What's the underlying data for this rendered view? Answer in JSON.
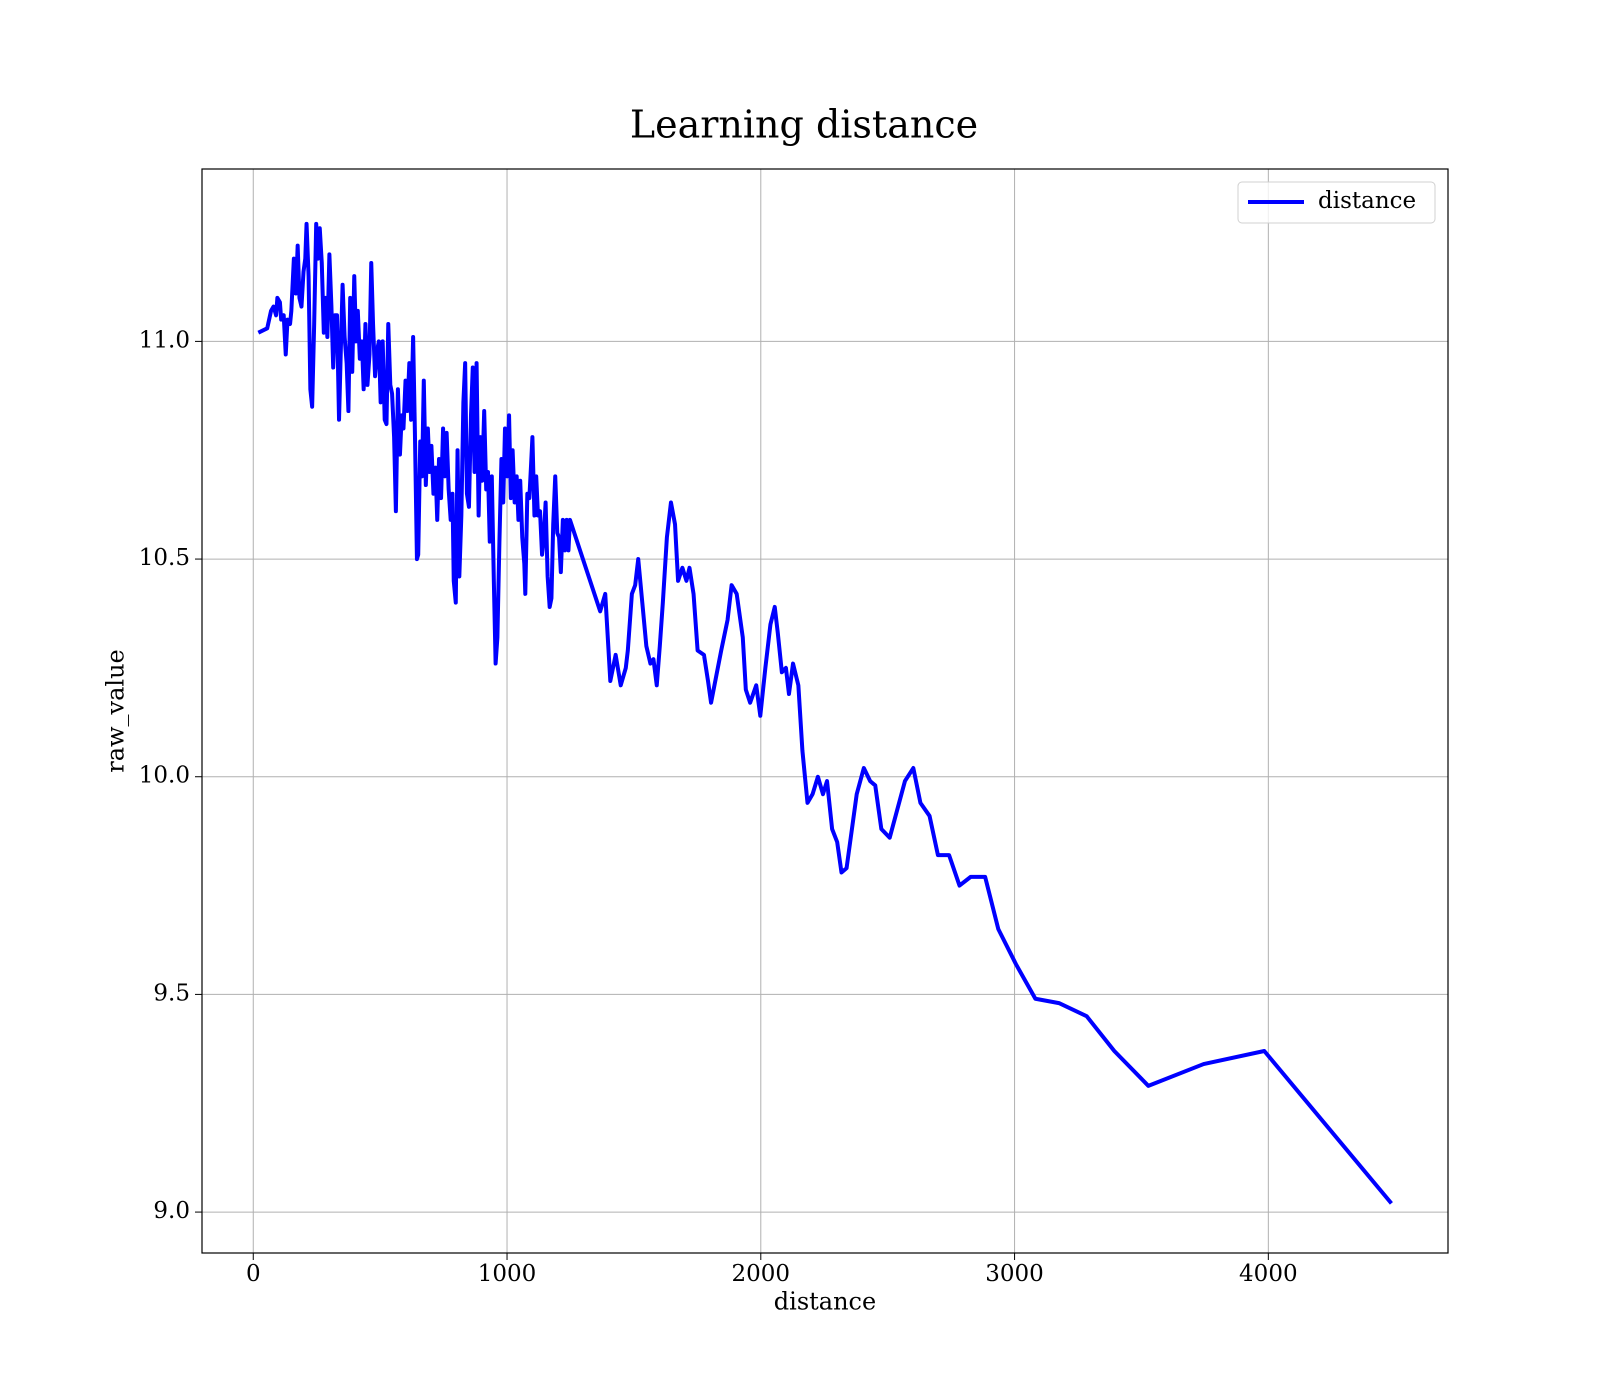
{
  "chart_data": {
    "type": "line",
    "title": "Learning distance",
    "xlabel": "distance",
    "ylabel": "raw_value",
    "x": [
      20,
      55,
      70,
      80,
      90,
      95,
      105,
      110,
      120,
      128,
      135,
      145,
      150,
      160,
      168,
      175,
      182,
      190,
      198,
      205,
      210,
      218,
      225,
      232,
      240,
      248,
      255,
      262,
      270,
      278,
      285,
      292,
      300,
      308,
      315,
      322,
      330,
      338,
      345,
      352,
      360,
      368,
      375,
      382,
      390,
      398,
      405,
      412,
      420,
      428,
      435,
      442,
      450,
      458,
      465,
      472,
      480,
      488,
      495,
      502,
      510,
      518,
      525,
      532,
      540,
      547,
      555,
      562,
      570,
      578,
      585,
      592,
      600,
      607,
      615,
      622,
      630,
      637,
      645,
      650,
      658,
      665,
      672,
      680,
      688,
      695,
      702,
      710,
      718,
      725,
      732,
      740,
      748,
      755,
      762,
      770,
      778,
      785,
      790,
      798,
      805,
      812,
      820,
      828,
      835,
      842,
      850,
      858,
      865,
      872,
      880,
      888,
      895,
      902,
      910,
      918,
      925,
      932,
      940,
      948,
      955,
      962,
      970,
      978,
      985,
      992,
      1000,
      1008,
      1015,
      1022,
      1030,
      1038,
      1045,
      1052,
      1060,
      1068,
      1072,
      1080,
      1088,
      1095,
      1100,
      1108,
      1115,
      1122,
      1130,
      1138,
      1145,
      1152,
      1160,
      1168,
      1175,
      1182,
      1190,
      1198,
      1205,
      1212,
      1220,
      1228,
      1235,
      1242,
      1248,
      1367,
      1387,
      1407,
      1428,
      1448,
      1468,
      1476,
      1492,
      1505,
      1517,
      1533,
      1549,
      1565,
      1577,
      1590,
      1602,
      1614,
      1630,
      1646,
      1662,
      1674,
      1691,
      1707,
      1719,
      1735,
      1751,
      1776,
      1792,
      1804,
      1824,
      1844,
      1869,
      1885,
      1905,
      1929,
      1941,
      1958,
      1982,
      1998,
      2018,
      2038,
      2055,
      2067,
      2083,
      2099,
      2111,
      2127,
      2148,
      2164,
      2184,
      2204,
      2225,
      2245,
      2261,
      2281,
      2301,
      2318,
      2338,
      2378,
      2406,
      2431,
      2451,
      2475,
      2508,
      2568,
      2601,
      2629,
      2665,
      2698,
      2742,
      2783,
      2827,
      2884,
      2936,
      3005,
      3082,
      3175,
      3284,
      3393,
      3527,
      3745,
      3984,
      4485
    ],
    "series": [
      {
        "name": "distance",
        "color": "#0000ff",
        "values": [
          11.02,
          11.03,
          11.07,
          11.08,
          11.06,
          11.1,
          11.09,
          11.05,
          11.06,
          10.97,
          11.05,
          11.04,
          11.07,
          11.19,
          11.11,
          11.22,
          11.1,
          11.08,
          11.16,
          11.19,
          11.27,
          11.15,
          10.89,
          10.85,
          11.04,
          11.27,
          11.19,
          11.26,
          11.18,
          11.02,
          11.1,
          11.01,
          11.2,
          11.08,
          10.94,
          11.06,
          11.06,
          10.82,
          10.98,
          11.13,
          11.01,
          10.95,
          10.84,
          11.1,
          10.93,
          11.15,
          11.0,
          11.07,
          10.96,
          11.0,
          10.89,
          11.04,
          10.9,
          10.97,
          11.18,
          11.04,
          10.92,
          10.98,
          11.0,
          10.86,
          11.0,
          10.82,
          10.81,
          11.04,
          10.9,
          10.88,
          10.78,
          10.61,
          10.89,
          10.74,
          10.83,
          10.8,
          10.91,
          10.84,
          10.95,
          10.82,
          11.01,
          10.79,
          10.5,
          10.51,
          10.77,
          10.69,
          10.91,
          10.67,
          10.8,
          10.7,
          10.76,
          10.65,
          10.71,
          10.59,
          10.73,
          10.64,
          10.8,
          10.69,
          10.79,
          10.66,
          10.59,
          10.65,
          10.45,
          10.4,
          10.75,
          10.46,
          10.6,
          10.86,
          10.95,
          10.65,
          10.62,
          10.83,
          10.94,
          10.7,
          10.95,
          10.6,
          10.78,
          10.68,
          10.84,
          10.66,
          10.7,
          10.54,
          10.69,
          10.45,
          10.26,
          10.32,
          10.54,
          10.73,
          10.63,
          10.8,
          10.69,
          10.83,
          10.64,
          10.75,
          10.63,
          10.69,
          10.59,
          10.68,
          10.55,
          10.49,
          10.42,
          10.65,
          10.64,
          10.72,
          10.78,
          10.6,
          10.69,
          10.6,
          10.61,
          10.51,
          10.55,
          10.63,
          10.46,
          10.39,
          10.41,
          10.58,
          10.69,
          10.56,
          10.55,
          10.47,
          10.59,
          10.52,
          10.59,
          10.52,
          10.59,
          10.38,
          10.42,
          10.22,
          10.28,
          10.21,
          10.25,
          10.29,
          10.42,
          10.44,
          10.5,
          10.4,
          10.3,
          10.26,
          10.27,
          10.21,
          10.3,
          10.4,
          10.55,
          10.63,
          10.58,
          10.45,
          10.48,
          10.45,
          10.48,
          10.42,
          10.29,
          10.28,
          10.22,
          10.17,
          10.23,
          10.29,
          10.36,
          10.44,
          10.42,
          10.32,
          10.2,
          10.17,
          10.21,
          10.14,
          10.25,
          10.35,
          10.39,
          10.33,
          10.24,
          10.25,
          10.19,
          10.26,
          10.21,
          10.06,
          9.94,
          9.96,
          10.0,
          9.96,
          9.99,
          9.88,
          9.85,
          9.78,
          9.79,
          9.96,
          10.02,
          9.99,
          9.98,
          9.88,
          9.86,
          9.99,
          10.02,
          9.94,
          9.91,
          9.82,
          9.82,
          9.75,
          9.77,
          9.77,
          9.65,
          9.57,
          9.49,
          9.48,
          9.45,
          9.37,
          9.29,
          9.34,
          9.37,
          9.02
        ]
      }
    ],
    "xlim": [
      -202,
      4708
    ],
    "ylim": [
      8.906,
      11.396
    ],
    "xticks": [
      0,
      1000,
      2000,
      3000,
      4000
    ],
    "yticks": [
      {
        "value": 9,
        "label": "9.0"
      },
      9.5,
      {
        "value": 10,
        "label": "10.0"
      },
      10.5,
      {
        "value": 11,
        "label": "11.0"
      }
    ],
    "grid": true,
    "legend": "upper right"
  }
}
